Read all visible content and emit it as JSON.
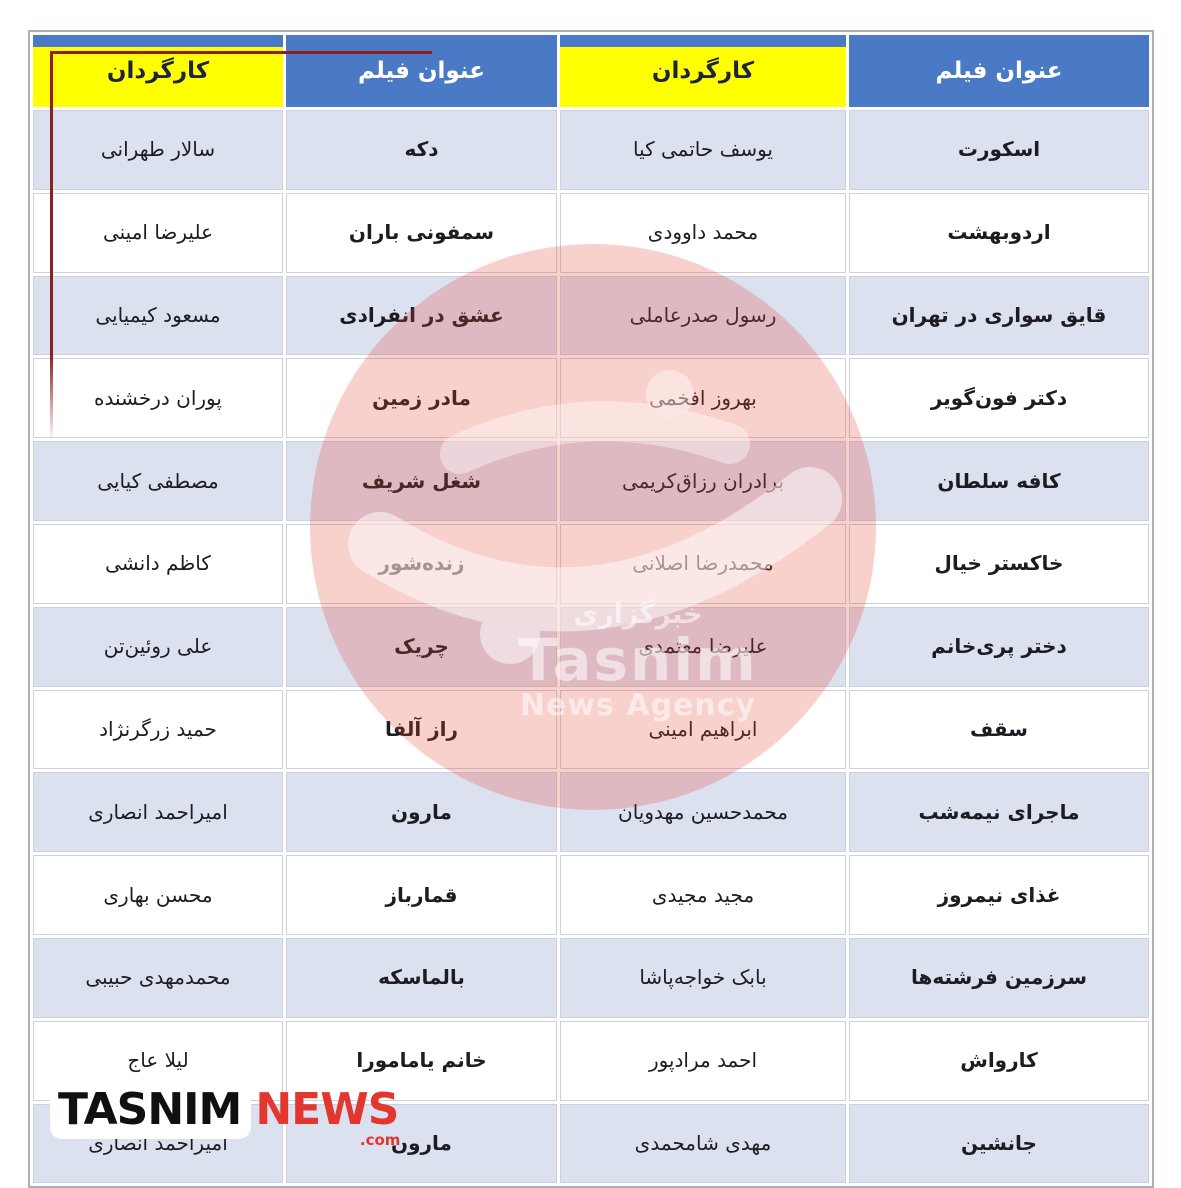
{
  "table": {
    "headers": [
      {
        "label": "عنوان فیلم",
        "type": "film"
      },
      {
        "label": "کارگردان",
        "type": "director"
      },
      {
        "label": "عنوان فیلم",
        "type": "film"
      },
      {
        "label": "کارگردان",
        "type": "director"
      }
    ],
    "rows": [
      {
        "film1": "اسکورت",
        "director1": "یوسف حاتمی کیا",
        "film2": "دکه",
        "director2": "سالار طهرانی"
      },
      {
        "film1": "اردوبهشت",
        "director1": "محمد داوودی",
        "film2": "سمفونی باران",
        "director2": "علیرضا امینی"
      },
      {
        "film1": "قایق سواری در تهران",
        "director1": "رسول صدرعاملی",
        "film2": "عشق در انفرادی",
        "director2": "مسعود کیمیایی"
      },
      {
        "film1": "دکتر فون‌گویر",
        "director1": "بهروز افخمی",
        "film2": "مادر زمین",
        "director2": "پوران درخشنده"
      },
      {
        "film1": "کافه سلطان",
        "director1": "برادران رزاق‌کریمی",
        "film2": "شغل شریف",
        "director2": "مصطفی کیایی"
      },
      {
        "film1": "خاکستر خیال",
        "director1": "محمدرضا اصلانی",
        "film2": "زنده‌شور",
        "director2": "کاظم دانشی"
      },
      {
        "film1": "دختر پری‌خانم",
        "director1": "علیرضا معتمدی",
        "film2": "چریک",
        "director2": "علی روئین‌تن"
      },
      {
        "film1": "سقف",
        "director1": "ابراهیم امینی",
        "film2": "راز آلفا",
        "director2": "حمید زرگرنژاد"
      },
      {
        "film1": "ماجرای نیمه‌شب",
        "director1": "محمدحسین مهدویان",
        "film2": "مارون",
        "director2": "امیراحمد انصاری"
      },
      {
        "film1": "غذای نیمروز",
        "director1": "مجید مجیدی",
        "film2": "قمارباز",
        "director2": "محسن بهاری"
      },
      {
        "film1": "سرزمین فرشته‌ها",
        "director1": "بابک خواجه‌پاشا",
        "film2": "بالماسکه",
        "director2": "محمدمهدی حبیبی"
      },
      {
        "film1": "کارواش",
        "director1": "احمد مرادپور",
        "film2": "خانم یامامورا",
        "director2": "لیلا عاج"
      },
      {
        "film1": "جانشین",
        "director1": "مهدی شامحمدی",
        "film2": "مارون",
        "director2": "امیراحمد انصاری"
      }
    ]
  },
  "watermark": {
    "line1": "خبرگزاری",
    "line2": "Tasnim",
    "line3": "News Agency",
    "color": "#e24234"
  },
  "footer": {
    "brand_black": "TASNIM",
    "brand_red": "NEWS",
    "domain": ".com"
  },
  "colors": {
    "header_blue": "#4a79c6",
    "header_yellow": "#ffff02",
    "row_light": "#dce1f0",
    "row_white": "#ffffff",
    "annotation_red": "#8e1f24",
    "brand_red": "#e2372f"
  }
}
